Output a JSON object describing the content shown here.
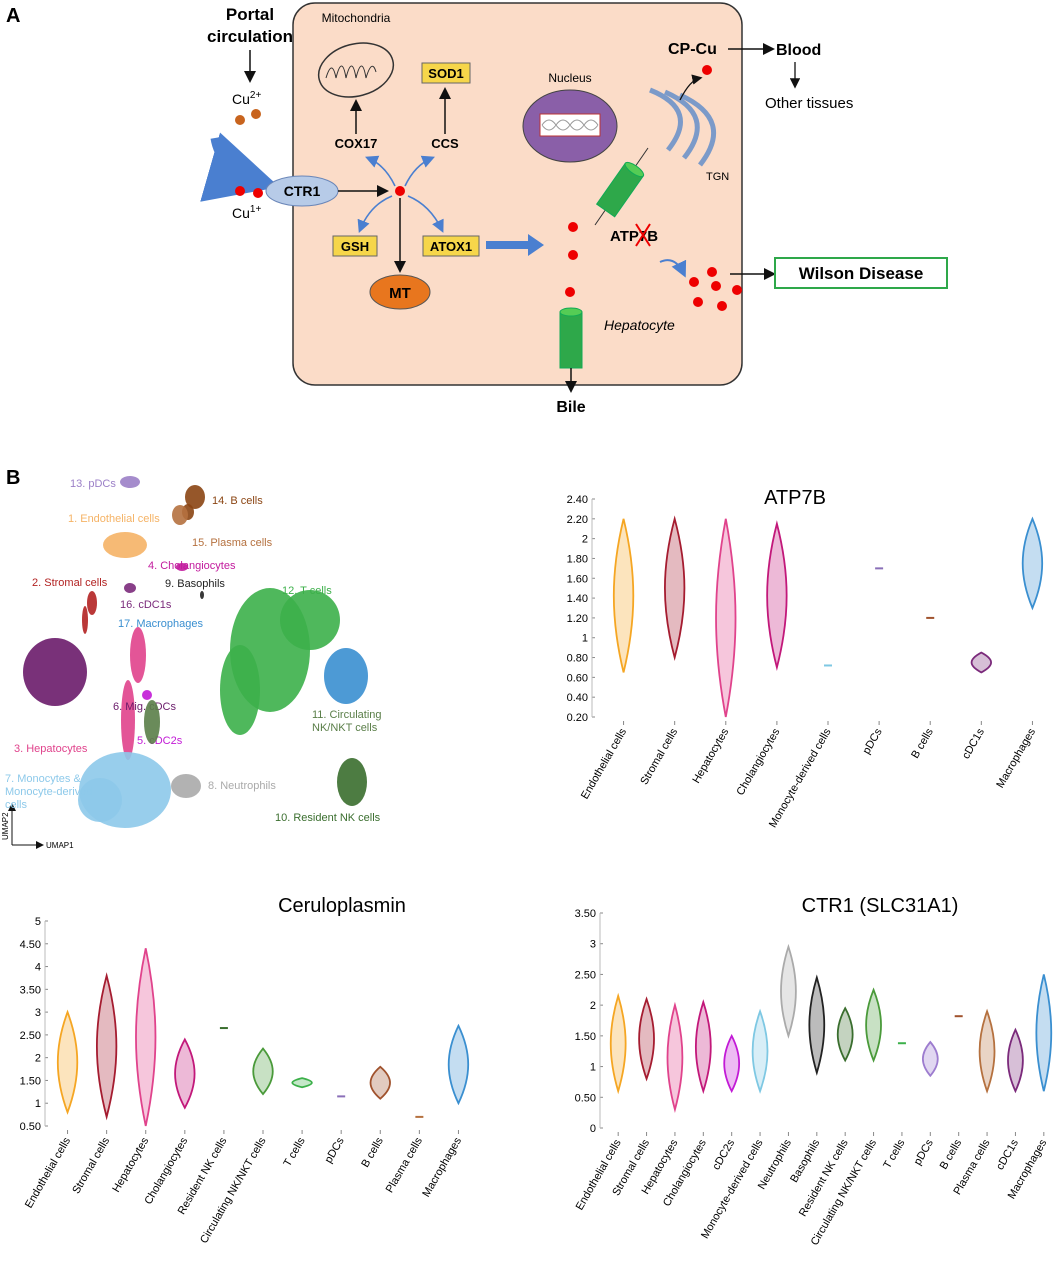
{
  "diagram": {
    "panel": "A",
    "title": [
      "Portal",
      "circulation"
    ],
    "cu2": {
      "base": "Cu",
      "sup": "2+"
    },
    "cu1": {
      "base": "Cu",
      "sup": "1+"
    },
    "ctr1": "CTR1",
    "mitochondria": "Mitochondria",
    "cox17": "COX17",
    "ccs": "CCS",
    "sod1": "SOD1",
    "gsh": "GSH",
    "mt": "MT",
    "atox1": "ATOX1",
    "nucleus": "Nucleus",
    "tgn": "TGN",
    "cpcu": "CP-Cu",
    "blood": "Blood",
    "other": "Other tissues",
    "atp7b": "ATP7B",
    "wilson": "Wilson Disease",
    "hepatocyte": "Hepatocyte",
    "bile": "Bile"
  },
  "umap": {
    "panel": "B",
    "x_label": "UMAP1",
    "y_label": "UMAP2",
    "clusters": [
      {
        "label": [
          "13. pDCs"
        ],
        "color": "#9b7fc7"
      },
      {
        "label": [
          "14. B cells"
        ],
        "color": "#8b4513"
      },
      {
        "label": [
          "1. Endothelial cells"
        ],
        "color": "#f5b366"
      },
      {
        "label": [
          "15. Plasma cells"
        ],
        "color": "#b5713f"
      },
      {
        "label": [
          "4. Cholangiocytes"
        ],
        "color": "#c21a9d"
      },
      {
        "label": [
          "2. Stromal cells"
        ],
        "color": "#b22222"
      },
      {
        "label": [
          "9. Basophils"
        ],
        "color": "#222222"
      },
      {
        "label": [
          "16. cDC1s"
        ],
        "color": "#7b2a7b"
      },
      {
        "label": [
          "12. T cells"
        ],
        "color": "#3cb04a"
      },
      {
        "label": [
          "17. Macrophages"
        ],
        "color": "#3a8fd0"
      },
      {
        "label": [
          "3. Hepatocytes"
        ],
        "color": "#e0438c"
      },
      {
        "label": [
          "6. Mig. cDCs"
        ],
        "color": "#6a1b6a"
      },
      {
        "label": [
          "5. cDC2s"
        ],
        "color": "#c21ad6"
      },
      {
        "label": [
          "11. Circulating",
          "NK/NKT cells"
        ],
        "color": "#5a7e48"
      },
      {
        "label": [
          "7. Monocytes &",
          "Monocyte-derived",
          "cells"
        ],
        "color": "#8dc9ea"
      },
      {
        "label": [
          "8. Neutrophils"
        ],
        "color": "#aaaaaa"
      },
      {
        "label": [
          "10. Resident NK cells"
        ],
        "color": "#3a6e2e"
      }
    ]
  },
  "chart_data": [
    {
      "type": "violin",
      "title": "ATP7B",
      "categories": [
        "Endothelial cells",
        "Stromal cells",
        "Hepatocytes",
        "Cholangiocytes",
        "Monocyte-derived cells",
        "pDCs",
        "B cells",
        "cDC1s",
        "Macrophages"
      ],
      "low": [
        0.65,
        0.8,
        0.2,
        0.7,
        0.72,
        1.7,
        1.2,
        0.65,
        1.3
      ],
      "high": [
        2.2,
        2.2,
        2.2,
        2.15,
        0.74,
        1.7,
        1.2,
        0.85,
        2.2
      ],
      "colors": [
        "#f5a623",
        "#a51c30",
        "#e0438c",
        "#c2187a",
        "#7ec8e3",
        "#8a6fb8",
        "#a0522d",
        "#7b2a7b",
        "#3a8fd0"
      ],
      "ylim": [
        0.2,
        2.4
      ],
      "yticks": [
        {
          "value": 0.2,
          "label": "0.20"
        },
        {
          "value": 0.4,
          "label": "0.40"
        },
        {
          "value": 0.6,
          "label": "0.60"
        },
        {
          "value": 0.8,
          "label": "0.80"
        },
        1,
        {
          "value": 1.2,
          "label": "1.20"
        },
        {
          "value": 1.4,
          "label": "1.40"
        },
        {
          "value": 1.6,
          "label": "1.60"
        },
        {
          "value": 1.8,
          "label": "1.80"
        },
        2,
        {
          "value": 2.2,
          "label": "2.20"
        },
        {
          "value": 2.4,
          "label": "2.40"
        }
      ]
    },
    {
      "type": "violin",
      "title": "Ceruloplasmin",
      "categories": [
        "Endothelial cells",
        "Stromal cells",
        "Hepatocytes",
        "Cholangiocytes",
        "Resident NK cells",
        "Circulating NK/NKT cells",
        "T cells",
        "pDCs",
        "B cells",
        "Plasma cells",
        "Macrophages"
      ],
      "low": [
        0.8,
        0.7,
        0.5,
        0.9,
        2.65,
        1.2,
        1.35,
        1.15,
        1.1,
        0.7,
        1.0
      ],
      "high": [
        3.0,
        3.8,
        4.4,
        2.4,
        2.65,
        2.2,
        1.55,
        1.15,
        1.8,
        0.7,
        2.7
      ],
      "colors": [
        "#f5a623",
        "#a51c30",
        "#e0438c",
        "#c2187a",
        "#3a6e2e",
        "#4a9a3a",
        "#3cb04a",
        "#8a6fb8",
        "#a0522d",
        "#b5713f",
        "#3a8fd0"
      ],
      "ylim": [
        0.5,
        5
      ],
      "yticks": [
        {
          "value": 0.5,
          "label": "0.50"
        },
        1,
        {
          "value": 1.5,
          "label": "1.50"
        },
        2,
        {
          "value": 2.5,
          "label": "2.50"
        },
        3,
        {
          "value": 3.5,
          "label": "3.50"
        },
        4,
        {
          "value": 4.5,
          "label": "4.50"
        },
        5
      ]
    },
    {
      "type": "violin",
      "title": "CTR1 (SLC31A1)",
      "categories": [
        "Endothelial cells",
        "Stromal cells",
        "Hepatocytes",
        "Cholangiocytes",
        "cDC2s",
        "Monocyte-derived cells",
        "Neutrophils",
        "Basophils",
        "Resident NK cells",
        "Circulating NK/NKT cells",
        "T cells",
        "pDCs",
        "B cells",
        "Plasma cells",
        "cDC1s",
        "Macrophages"
      ],
      "low": [
        0.6,
        0.8,
        0.3,
        0.6,
        0.6,
        0.6,
        1.5,
        0.9,
        1.1,
        1.1,
        1.38,
        0.85,
        1.82,
        0.6,
        0.6,
        0.6
      ],
      "high": [
        2.15,
        2.1,
        2.0,
        2.05,
        1.5,
        1.9,
        2.95,
        2.45,
        1.95,
        2.25,
        1.38,
        1.4,
        1.82,
        1.9,
        1.6,
        2.5
      ],
      "colors": [
        "#f5a623",
        "#a51c30",
        "#e0438c",
        "#c2187a",
        "#c21ad6",
        "#7ec8e3",
        "#aaaaaa",
        "#222222",
        "#3a6e2e",
        "#4a9a3a",
        "#3cb04a",
        "#9d7ccf",
        "#a0522d",
        "#b5713f",
        "#7b2a7b",
        "#3a8fd0"
      ],
      "ylim": [
        0,
        3.5
      ],
      "yticks": [
        0,
        {
          "value": 0.5,
          "label": "0.50"
        },
        1,
        {
          "value": 1.5,
          "label": "1.50"
        },
        2,
        {
          "value": 2.5,
          "label": "2.50"
        },
        3,
        {
          "value": 3.5,
          "label": "3.50"
        }
      ]
    }
  ]
}
